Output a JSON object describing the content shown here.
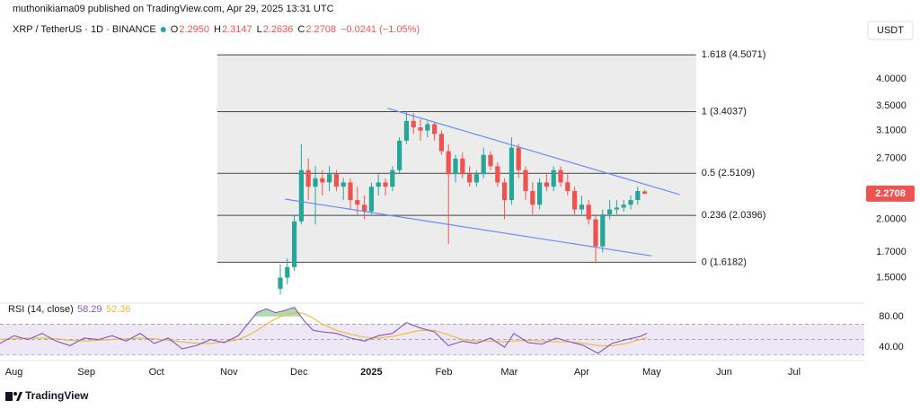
{
  "header": {
    "publisher": "muthonikiama09 published on TradingView.com, Apr 29, 2025 13:31 UTC"
  },
  "chart_data": [
    {
      "type": "candlestick",
      "symbol": "XRP / TetherUS · 1D · BINANCE",
      "ohlc": [
        {
          "key": "O",
          "value": "2.2950"
        },
        {
          "key": "H",
          "value": "2.3147"
        },
        {
          "key": "L",
          "value": "2.2636"
        },
        {
          "key": "C",
          "value": "2.2708"
        }
      ],
      "change": "−0.0241 (−1.05%)",
      "currency": "USDT",
      "log_scale": true,
      "ylim": [
        1.34,
        4.84
      ],
      "yticks": [
        {
          "value": 4,
          "label": "4.0000"
        },
        {
          "value": 3.5,
          "label": "3.5000"
        },
        {
          "value": 3.1,
          "label": "3.1000"
        },
        {
          "value": 2.7,
          "label": "2.7000"
        },
        {
          "value": 2,
          "label": "2.0000"
        },
        {
          "value": 1.7,
          "label": "1.7000"
        },
        {
          "value": 1.5,
          "label": "1.5000"
        }
      ],
      "xlim": [
        -6,
        364
      ],
      "xticks": [
        {
          "value": 0,
          "label": "Aug"
        },
        {
          "value": 31,
          "label": "Sep"
        },
        {
          "value": 61,
          "label": "Oct"
        },
        {
          "value": 92,
          "label": "Nov"
        },
        {
          "value": 122,
          "label": "Dec"
        },
        {
          "value": 153,
          "label": "2025"
        },
        {
          "value": 184,
          "label": "Feb"
        },
        {
          "value": 212,
          "label": "Mar"
        },
        {
          "value": 243,
          "label": "Apr"
        },
        {
          "value": 273,
          "label": "May"
        },
        {
          "value": 304,
          "label": "Jun"
        },
        {
          "value": 334,
          "label": "Jul"
        }
      ],
      "x": [
        114,
        117,
        120,
        123,
        126,
        129,
        132,
        135,
        138,
        141,
        144,
        147,
        150,
        153,
        156,
        159,
        162,
        165,
        168,
        171,
        174,
        177,
        180,
        183,
        186,
        189,
        192,
        195,
        198,
        201,
        204,
        207,
        210,
        213,
        216,
        219,
        222,
        225,
        228,
        231,
        234,
        237,
        240,
        243,
        246,
        249,
        252,
        255,
        258,
        261,
        264,
        267,
        270
      ],
      "open": [
        1.42,
        1.5,
        1.58,
        1.98,
        2.55,
        2.35,
        2.45,
        2.4,
        2.5,
        2.35,
        2.4,
        2.2,
        2.15,
        2.08,
        2.35,
        2.4,
        2.35,
        2.55,
        2.95,
        3.25,
        3.15,
        3.1,
        3.2,
        3.05,
        2.8,
        2.5,
        2.7,
        2.5,
        2.4,
        2.5,
        2.75,
        2.6,
        2.4,
        2.2,
        2.85,
        2.55,
        2.3,
        2.15,
        2.4,
        2.35,
        2.55,
        2.4,
        2.3,
        2.1,
        2.15,
        2.0,
        1.75,
        2.05,
        2.1,
        2.12,
        2.15,
        2.2,
        2.295
      ],
      "high": [
        1.6,
        1.65,
        2.05,
        2.9,
        2.7,
        2.6,
        2.55,
        2.6,
        2.55,
        2.45,
        2.45,
        2.35,
        2.25,
        2.4,
        2.5,
        2.45,
        2.6,
        3.0,
        3.4,
        3.38,
        3.28,
        3.25,
        3.22,
        3.1,
        2.9,
        2.75,
        2.78,
        2.6,
        2.55,
        2.85,
        2.8,
        2.65,
        2.45,
        3.0,
        2.9,
        2.6,
        2.4,
        2.45,
        2.5,
        2.6,
        2.6,
        2.5,
        2.35,
        2.25,
        2.2,
        2.05,
        2.1,
        2.2,
        2.2,
        2.2,
        2.25,
        2.35,
        2.3147
      ],
      "low": [
        1.38,
        1.45,
        1.55,
        1.95,
        2.2,
        1.95,
        2.25,
        2.3,
        2.3,
        2.2,
        2.1,
        2.05,
        2.0,
        2.05,
        2.25,
        2.25,
        2.3,
        2.5,
        2.9,
        3.05,
        2.95,
        3.0,
        2.95,
        2.75,
        1.77,
        2.4,
        2.45,
        2.35,
        2.35,
        2.45,
        2.55,
        2.35,
        2.0,
        2.15,
        2.45,
        2.2,
        2.05,
        2.1,
        2.3,
        2.3,
        2.35,
        2.25,
        2.05,
        2.05,
        1.95,
        1.61,
        1.7,
        2.0,
        2.05,
        2.08,
        2.1,
        2.15,
        2.2636
      ],
      "close": [
        1.5,
        1.58,
        1.98,
        2.55,
        2.35,
        2.45,
        2.4,
        2.5,
        2.35,
        2.4,
        2.2,
        2.15,
        2.08,
        2.35,
        2.4,
        2.35,
        2.55,
        2.95,
        3.25,
        3.15,
        3.1,
        3.2,
        3.05,
        2.8,
        2.5,
        2.7,
        2.5,
        2.4,
        2.5,
        2.75,
        2.6,
        2.4,
        2.2,
        2.85,
        2.55,
        2.3,
        2.15,
        2.4,
        2.35,
        2.55,
        2.4,
        2.3,
        2.1,
        2.15,
        2.0,
        1.75,
        2.05,
        2.1,
        2.12,
        2.15,
        2.2,
        2.3,
        2.2708
      ],
      "up_color": "#26a69a",
      "down_color": "#ef5350",
      "last_price": {
        "value": 2.2708,
        "label": "2.2708"
      },
      "fib": {
        "x_range": [
          87,
          292
        ],
        "color": "#444444",
        "shade": "#ececec",
        "levels": [
          {
            "value": 4.5071,
            "label": "1.618 (4.5071)"
          },
          {
            "value": 3.4037,
            "label": "1 (3.4037)"
          },
          {
            "value": 2.5109,
            "label": "0.5 (2.5109)"
          },
          {
            "value": 2.0396,
            "label": "0.236 (2.0396)"
          },
          {
            "value": 1.6182,
            "label": "0 (1.6182)"
          }
        ]
      },
      "trendlines": [
        {
          "x": [
            160,
            285
          ],
          "y": [
            3.46,
            2.26
          ],
          "color": "#6b8cf0"
        },
        {
          "x": [
            116,
            273
          ],
          "y": [
            2.21,
            1.67
          ],
          "color": "#6b8cf0"
        }
      ]
    },
    {
      "type": "line",
      "title": "RSI (14, close)",
      "ylim": [
        25,
        95
      ],
      "yticks": [
        {
          "value": 80,
          "label": "80.00"
        },
        {
          "value": 40,
          "label": "40.00"
        }
      ],
      "bands": [
        70,
        50,
        30
      ],
      "overbought_fill": "#4caf50",
      "x": [
        -6,
        0,
        6,
        12,
        18,
        24,
        30,
        36,
        42,
        48,
        54,
        60,
        66,
        72,
        78,
        84,
        90,
        96,
        100,
        104,
        108,
        112,
        116,
        120,
        124,
        128,
        132,
        138,
        144,
        150,
        156,
        162,
        168,
        174,
        180,
        186,
        192,
        198,
        204,
        210,
        214,
        220,
        226,
        232,
        238,
        244,
        250,
        256,
        262,
        268,
        271
      ],
      "series": [
        {
          "color": "#7e57c2",
          "values": [
            45,
            55,
            50,
            58,
            48,
            42,
            52,
            50,
            55,
            48,
            58,
            45,
            52,
            38,
            42,
            50,
            46,
            55,
            70,
            85,
            90,
            85,
            88,
            92,
            75,
            62,
            60,
            58,
            52,
            48,
            55,
            58,
            72,
            65,
            60,
            42,
            48,
            45,
            52,
            40,
            58,
            46,
            44,
            52,
            47,
            42,
            32,
            45,
            50,
            54,
            58.29
          ]
        },
        {
          "color": "#f2b632",
          "values": [
            50,
            51,
            52,
            52,
            51,
            49,
            48,
            49,
            50,
            51,
            52,
            51,
            49,
            47,
            45,
            45,
            47,
            50,
            55,
            62,
            70,
            77,
            82,
            85,
            84,
            78,
            70,
            62,
            57,
            53,
            52,
            54,
            58,
            62,
            62,
            56,
            50,
            48,
            48,
            47,
            48,
            49,
            48,
            47,
            47,
            45,
            42,
            42,
            45,
            50,
            52.36
          ]
        }
      ]
    }
  ],
  "footer": {
    "brand": "TradingView"
  }
}
